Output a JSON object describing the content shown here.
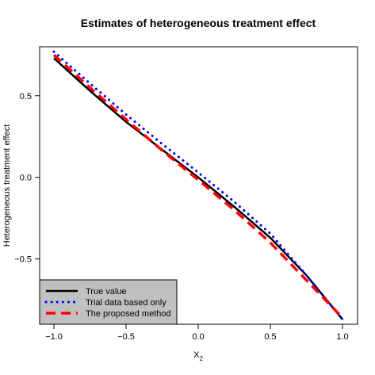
{
  "chart_data": {
    "type": "line",
    "title": "Estimates of heterogeneous treatment effect",
    "xlabel": "X",
    "xlabel_subscript": "2",
    "ylabel": "Heterogeneous treatment effect",
    "xlim": [
      -1.0,
      1.0
    ],
    "ylim": [
      -0.9,
      0.8
    ],
    "x_ticks": [
      -1.0,
      -0.5,
      0.0,
      0.5,
      1.0
    ],
    "x_tick_labels": [
      "−1.0",
      "−0.5",
      "0.0",
      "0.5",
      "1.0"
    ],
    "y_ticks": [
      -0.5,
      0.0,
      0.5
    ],
    "y_tick_labels": [
      "−0.5",
      "0.0",
      "0.5"
    ],
    "grid": false,
    "legend_position": "bottom-left",
    "legend_background": "#c0c0c0",
    "x": [
      -1.0,
      -0.75,
      -0.5,
      -0.25,
      0.0,
      0.25,
      0.5,
      0.75,
      1.0
    ],
    "series": [
      {
        "name": "True value",
        "color": "#000000",
        "style": "solid",
        "values": [
          0.73,
          0.53,
          0.34,
          0.17,
          0.0,
          -0.18,
          -0.37,
          -0.6,
          -0.87
        ]
      },
      {
        "name": "Trial data based only",
        "color": "#0000ff",
        "style": "dotted",
        "values": [
          0.77,
          0.575,
          0.385,
          0.205,
          0.03,
          -0.15,
          -0.345,
          -0.6,
          -0.87
        ]
      },
      {
        "name": "The proposed method",
        "color": "#ff0000",
        "style": "dashed",
        "values": [
          0.75,
          0.55,
          0.355,
          0.165,
          -0.015,
          -0.2,
          -0.4,
          -0.63,
          -0.86
        ]
      }
    ]
  }
}
